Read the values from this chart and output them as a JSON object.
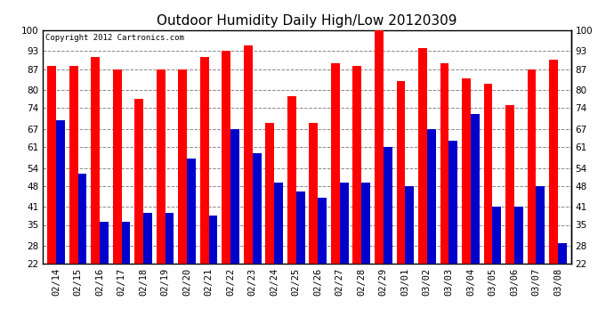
{
  "title": "Outdoor Humidity Daily High/Low 20120309",
  "copyright": "Copyright 2012 Cartronics.com",
  "dates": [
    "02/14",
    "02/15",
    "02/16",
    "02/17",
    "02/18",
    "02/19",
    "02/20",
    "02/21",
    "02/22",
    "02/23",
    "02/24",
    "02/25",
    "02/26",
    "02/27",
    "02/28",
    "02/29",
    "03/01",
    "03/02",
    "03/03",
    "03/04",
    "03/05",
    "03/06",
    "03/07",
    "03/08"
  ],
  "highs": [
    88,
    88,
    91,
    87,
    77,
    87,
    87,
    91,
    93,
    95,
    69,
    78,
    69,
    89,
    88,
    100,
    83,
    94,
    89,
    84,
    82,
    75,
    87,
    90
  ],
  "lows": [
    70,
    52,
    36,
    36,
    39,
    39,
    57,
    38,
    67,
    59,
    49,
    46,
    44,
    49,
    49,
    61,
    48,
    67,
    63,
    72,
    41,
    41,
    48,
    29
  ],
  "high_color": "#ff0000",
  "low_color": "#0000cc",
  "background_color": "#ffffff",
  "plot_bg_color": "#ffffff",
  "grid_color": "#888888",
  "ylim": [
    22,
    100
  ],
  "yticks": [
    22,
    28,
    35,
    41,
    48,
    54,
    61,
    67,
    74,
    80,
    87,
    93,
    100
  ],
  "bar_width": 0.4,
  "title_fontsize": 11,
  "tick_fontsize": 7.5,
  "copyright_fontsize": 6.5
}
